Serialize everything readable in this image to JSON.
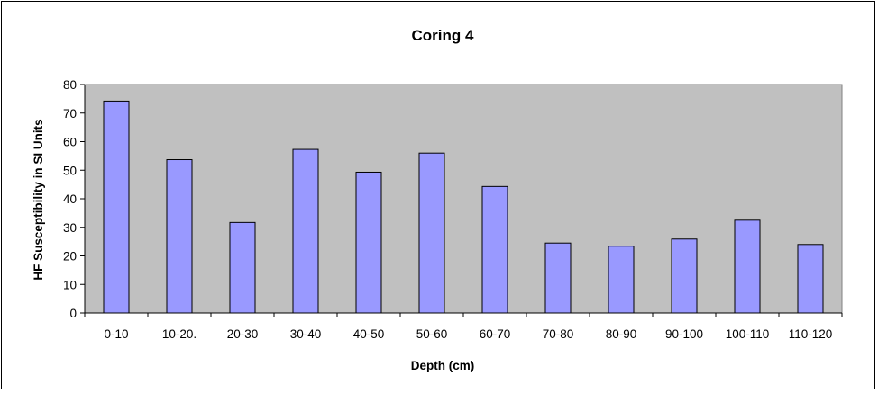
{
  "chart_data": {
    "type": "bar",
    "title": "Coring 4",
    "xlabel": "Depth (cm)",
    "ylabel": "HF Susceptibility in SI Units",
    "categories": [
      "0-10",
      "10-20.",
      "20-30",
      "30-40",
      "40-50",
      "50-60",
      "60-70",
      "70-80",
      "80-90",
      "90-100",
      "100-110",
      "110-120"
    ],
    "values": [
      74.2,
      53.7,
      31.7,
      57.3,
      49.3,
      56.0,
      44.3,
      24.5,
      23.4,
      25.9,
      32.5,
      24.0
    ],
    "ylim": [
      0,
      80
    ],
    "yticks": [
      0,
      10,
      20,
      30,
      40,
      50,
      60,
      70,
      80
    ],
    "grid": false,
    "legend": "none",
    "colors": {
      "plot_background": "#c0c0c0",
      "bar_fill": "#9999ff",
      "bar_stroke": "#000000"
    }
  }
}
